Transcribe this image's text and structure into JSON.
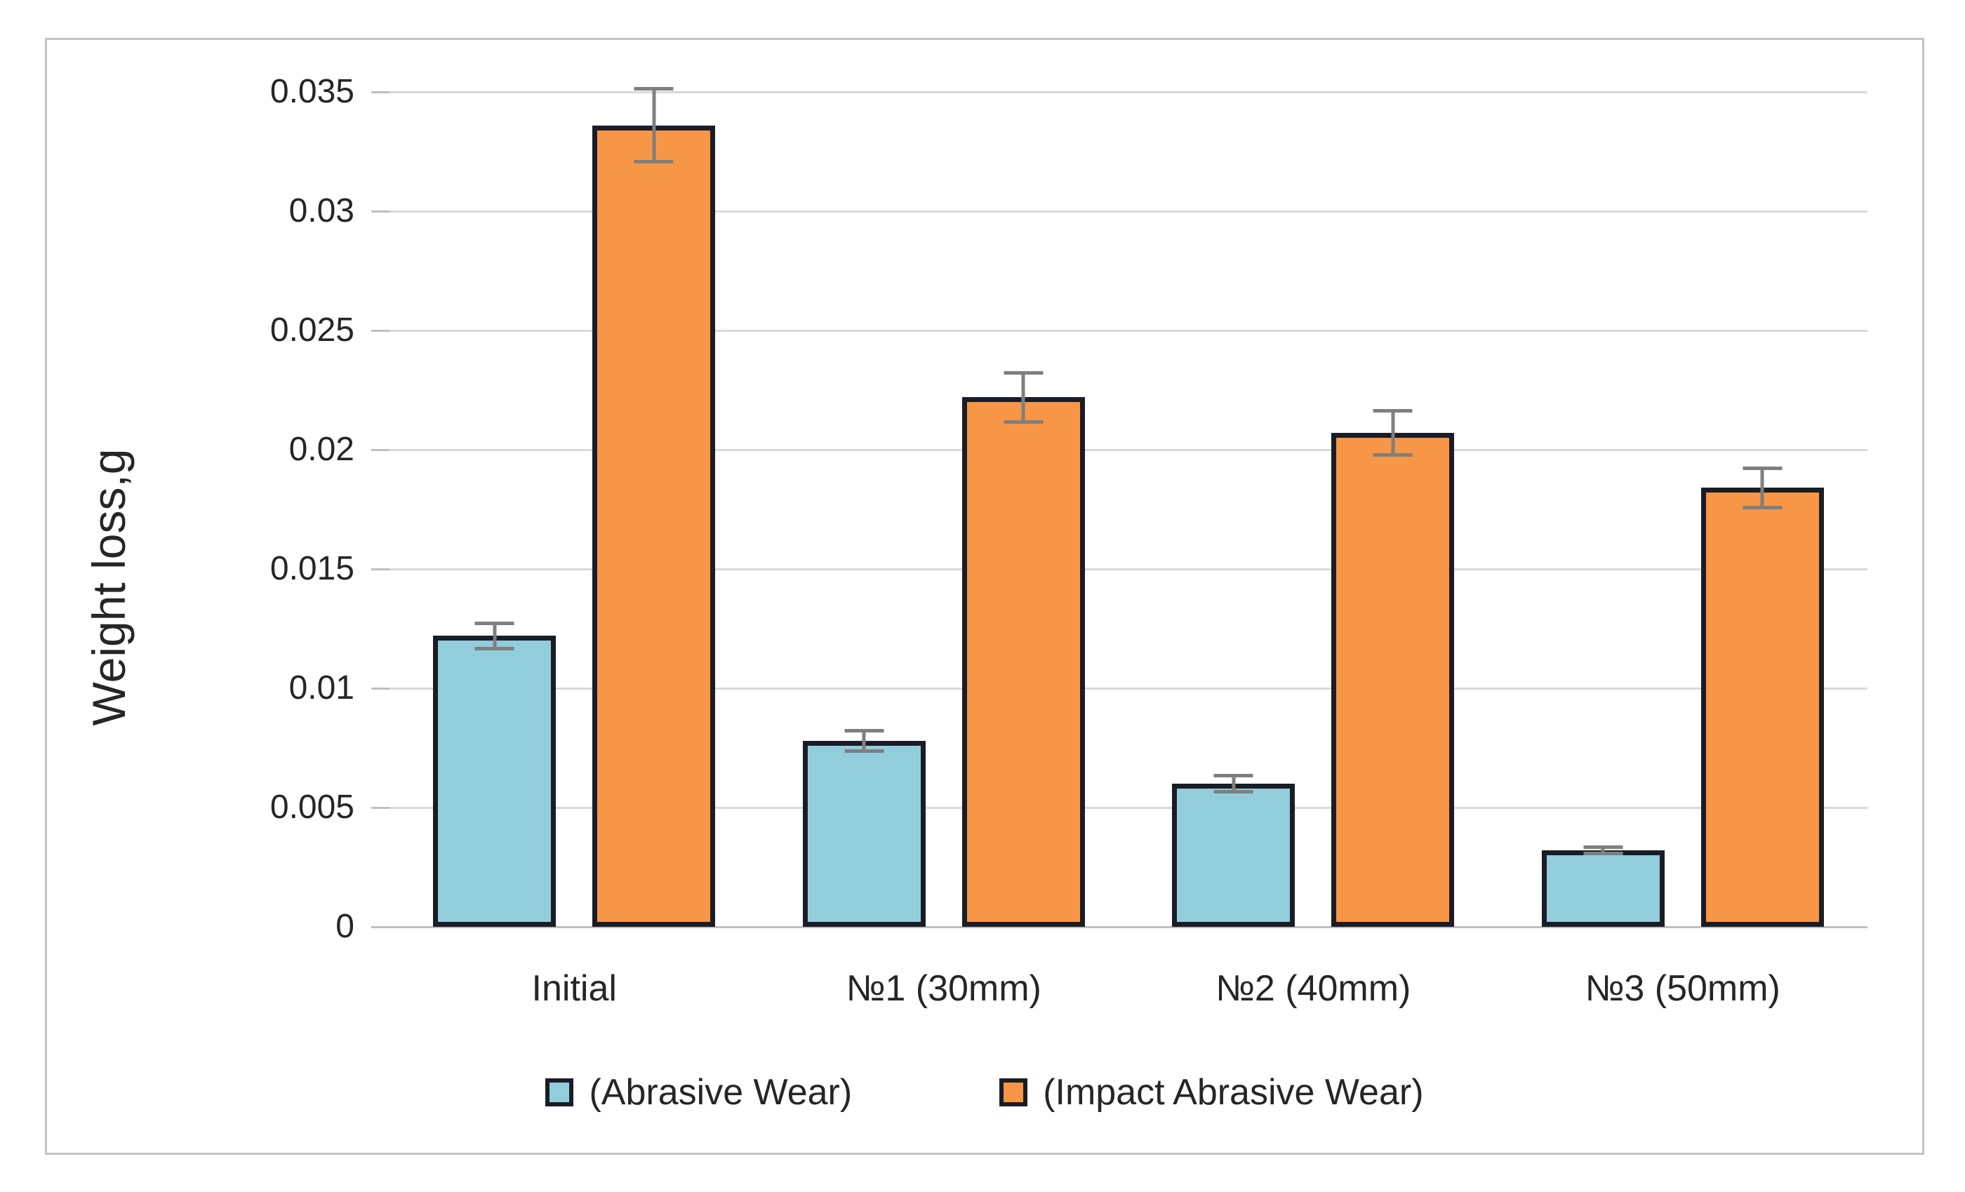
{
  "chart_data": {
    "type": "bar",
    "title": "",
    "xlabel": "",
    "ylabel": "Weight loss,g",
    "categories": [
      "Initial",
      "№1 (30mm)",
      "№2 (40mm)",
      "№3 (50mm)"
    ],
    "series": [
      {
        "name": "(Abrasive Wear)",
        "color": "#92CDDC",
        "values": [
          0.0122,
          0.0078,
          0.006,
          0.0032
        ],
        "errors": [
          0.0006,
          0.0005,
          0.0004,
          0.0002
        ]
      },
      {
        "name": "(Impact Abrasive Wear)",
        "color": "#F79646",
        "values": [
          0.0336,
          0.0222,
          0.0207,
          0.0184
        ],
        "errors": [
          0.0016,
          0.0011,
          0.001,
          0.0009
        ]
      }
    ],
    "ylim": [
      0,
      0.035
    ],
    "ytick_step": 0.005,
    "yticks": [
      "0",
      "0.005",
      "0.01",
      "0.015",
      "0.02",
      "0.025",
      "0.03",
      "0.035"
    ],
    "grid": "horizontal",
    "legend_position": "bottom"
  },
  "colors": {
    "bar_border": "#1A1D26",
    "gridline": "#D9D9D9",
    "baseline": "#BFBFBF",
    "error_bar": "#7F7F7F",
    "frame_border": "#C3C3C3",
    "text": "#262626",
    "background": "#FFFFFF"
  }
}
